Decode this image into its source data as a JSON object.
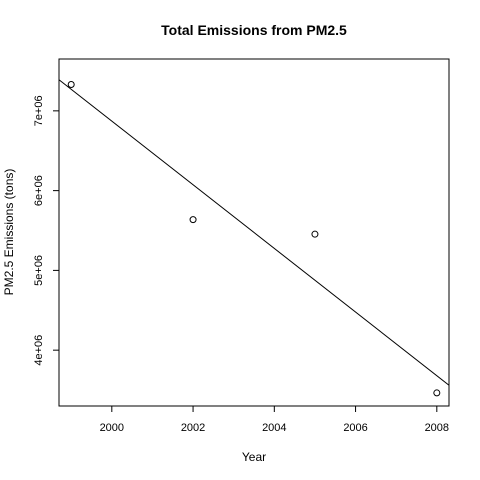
{
  "chart_data": {
    "type": "scatter",
    "title": "Total Emissions from PM2.5",
    "xlabel": "Year",
    "ylabel": "PM2.5 Emissions (tons)",
    "xlim": [
      1998.7,
      2008.3
    ],
    "ylim": [
      3300000,
      7650000
    ],
    "x_ticks": [
      2000,
      2002,
      2004,
      2006,
      2008
    ],
    "x_tick_labels": [
      "2000",
      "2002",
      "2004",
      "2006",
      "2008"
    ],
    "y_ticks": [
      4000000,
      5000000,
      6000000,
      7000000
    ],
    "y_tick_labels": [
      "4e+06",
      "5e+06",
      "6e+06",
      "7e+06"
    ],
    "points": [
      {
        "x": 1999,
        "y": 7330000
      },
      {
        "x": 2002,
        "y": 5636000
      },
      {
        "x": 2005,
        "y": 5454000
      },
      {
        "x": 2008,
        "y": 3464000
      }
    ],
    "regression_line": {
      "x_start": 1998.7,
      "y_start": 7390000,
      "x_end": 2008.3,
      "y_end": 3560000
    },
    "grid": false,
    "legend": "none"
  }
}
